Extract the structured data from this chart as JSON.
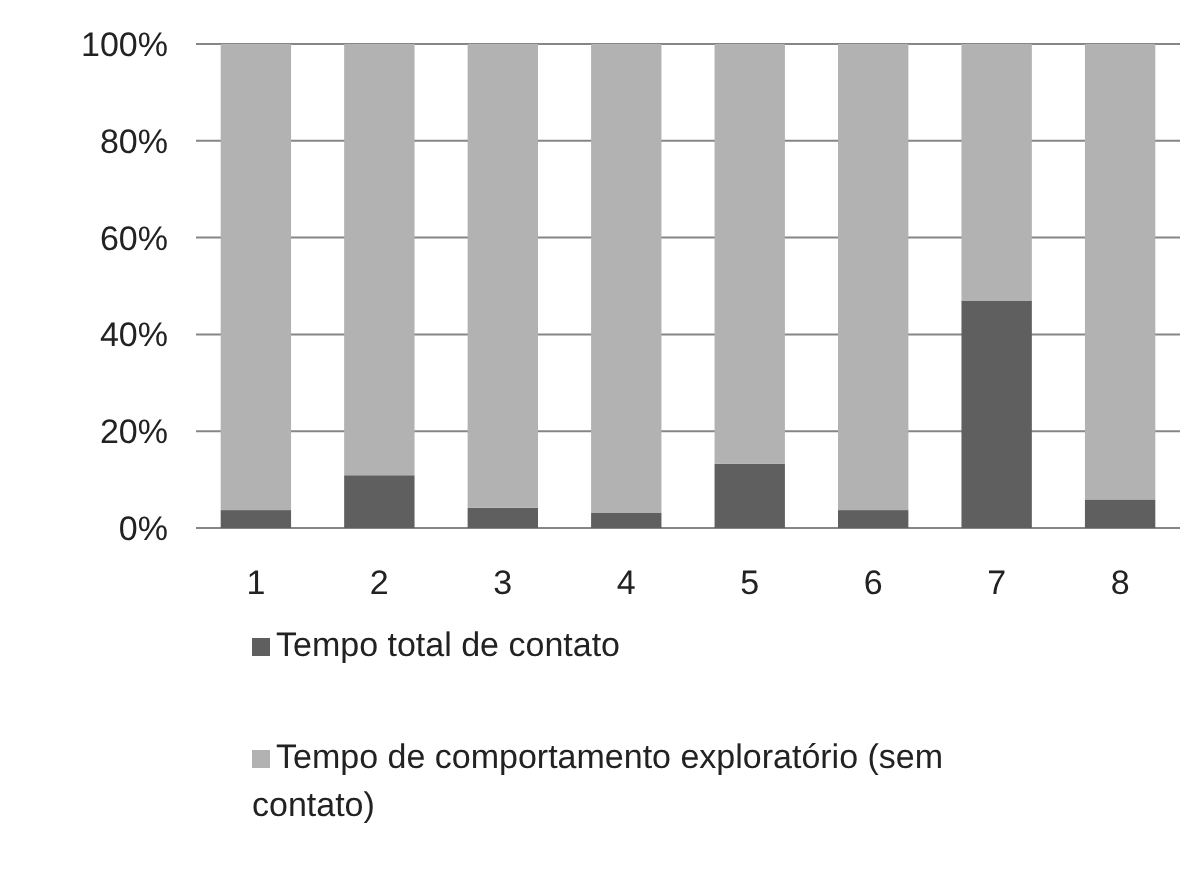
{
  "chart_data": {
    "type": "bar",
    "stacked": true,
    "categories": [
      "1",
      "2",
      "3",
      "4",
      "5",
      "6",
      "7",
      "8"
    ],
    "series": [
      {
        "name": "Tempo total de contato",
        "color": "#5f5f5f",
        "values": [
          3.7,
          10.9,
          4.2,
          3.1,
          13.3,
          3.7,
          47,
          5.9
        ]
      },
      {
        "name": "Tempo de comportamento exploratório (sem contato)",
        "color": "#b2b2b2",
        "values": [
          96.3,
          89.1,
          95.8,
          96.9,
          86.7,
          96.3,
          53,
          94.1
        ]
      }
    ],
    "ylim": [
      0,
      100
    ],
    "yticks": [
      {
        "value": 0,
        "label": "0%"
      },
      {
        "value": 20,
        "label": "20%"
      },
      {
        "value": 40,
        "label": "40%"
      },
      {
        "value": 60,
        "label": "60%"
      },
      {
        "value": 80,
        "label": "80%"
      },
      {
        "value": 100,
        "label": "100%"
      }
    ],
    "grid": "y",
    "legend": "bottom"
  }
}
